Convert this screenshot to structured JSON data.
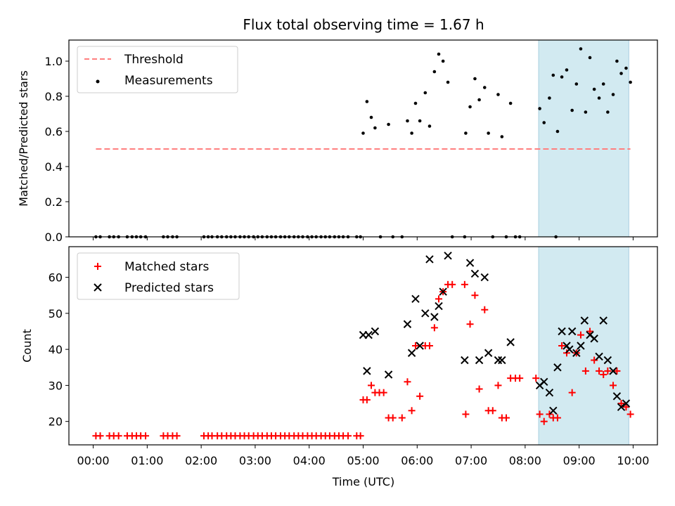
{
  "title": "Flux total observing time = 1.67 h",
  "colors": {
    "threshold": "#ff7f7f",
    "measure": "#000000",
    "matched": "#ff0000",
    "predicted": "#000000",
    "shade": "#add8e6"
  },
  "chart_data": [
    {
      "type": "scatter",
      "ylabel": "Matched/Predicted stars",
      "xlim_hours": [
        -0.45,
        10.45
      ],
      "ylim": [
        0,
        1.12
      ],
      "yticks": [
        "0.0",
        "0.2",
        "0.4",
        "0.6",
        "0.8",
        "1.0"
      ],
      "ytick_values": [
        0,
        0.2,
        0.4,
        0.6,
        0.8,
        1.0
      ],
      "shaded_span_hours": [
        8.25,
        9.92
      ],
      "threshold": {
        "value": 0.5,
        "x_range_hours": [
          0.05,
          9.95
        ]
      },
      "legend": {
        "location": "upper left",
        "entries": [
          "Threshold",
          "Measurements"
        ]
      },
      "measurements_nonzero": [
        [
          5.0,
          0.59
        ],
        [
          5.07,
          0.77
        ],
        [
          5.15,
          0.68
        ],
        [
          5.22,
          0.62
        ],
        [
          5.47,
          0.64
        ],
        [
          5.82,
          0.66
        ],
        [
          5.9,
          0.59
        ],
        [
          5.97,
          0.76
        ],
        [
          6.05,
          0.66
        ],
        [
          6.15,
          0.82
        ],
        [
          6.23,
          0.63
        ],
        [
          6.32,
          0.94
        ],
        [
          6.4,
          1.04
        ],
        [
          6.48,
          1.0
        ],
        [
          6.57,
          0.88
        ],
        [
          6.9,
          0.59
        ],
        [
          6.98,
          0.74
        ],
        [
          7.07,
          0.9
        ],
        [
          7.15,
          0.78
        ],
        [
          7.25,
          0.85
        ],
        [
          7.32,
          0.59
        ],
        [
          7.5,
          0.81
        ],
        [
          7.57,
          0.57
        ],
        [
          7.73,
          0.76
        ],
        [
          8.27,
          0.73
        ],
        [
          8.35,
          0.65
        ],
        [
          8.45,
          0.79
        ],
        [
          8.52,
          0.92
        ],
        [
          8.6,
          0.6
        ],
        [
          8.68,
          0.91
        ],
        [
          8.77,
          0.95
        ],
        [
          8.87,
          0.72
        ],
        [
          8.95,
          0.87
        ],
        [
          9.03,
          1.07
        ],
        [
          9.12,
          0.71
        ],
        [
          9.2,
          1.02
        ],
        [
          9.28,
          0.84
        ],
        [
          9.37,
          0.79
        ],
        [
          9.45,
          0.87
        ],
        [
          9.53,
          0.71
        ],
        [
          9.63,
          0.81
        ],
        [
          9.7,
          1.0
        ],
        [
          9.78,
          0.93
        ],
        [
          9.87,
          0.96
        ],
        [
          9.95,
          0.88
        ]
      ],
      "measurements_zero_hours": [
        0.05,
        0.13,
        0.3,
        0.38,
        0.47,
        0.63,
        0.72,
        0.8,
        0.88,
        0.97,
        1.3,
        1.38,
        1.47,
        1.55,
        2.05,
        2.13,
        2.2,
        2.3,
        2.38,
        2.47,
        2.55,
        2.63,
        2.72,
        2.8,
        2.88,
        2.97,
        3.05,
        3.13,
        3.22,
        3.3,
        3.38,
        3.47,
        3.55,
        3.63,
        3.72,
        3.8,
        3.88,
        3.97,
        4.05,
        4.13,
        4.22,
        4.3,
        4.38,
        4.47,
        4.55,
        4.63,
        4.72,
        4.88,
        4.95,
        5.32,
        5.55,
        5.72,
        6.65,
        6.88,
        7.4,
        7.65,
        7.82,
        7.9,
        8.57
      ]
    },
    {
      "type": "scatter",
      "ylabel": "Count",
      "xlabel": "Time (UTC)",
      "xlim_hours": [
        -0.45,
        10.45
      ],
      "ylim": [
        13.5,
        68.5
      ],
      "yticks": [
        "20",
        "30",
        "40",
        "50",
        "60"
      ],
      "ytick_values": [
        20,
        30,
        40,
        50,
        60
      ],
      "xticks": [
        "00:00",
        "01:00",
        "02:00",
        "03:00",
        "04:00",
        "05:00",
        "06:00",
        "07:00",
        "08:00",
        "09:00",
        "10:00"
      ],
      "xtick_values_hours": [
        0,
        1,
        2,
        3,
        4,
        5,
        6,
        7,
        8,
        9,
        10
      ],
      "shaded_span_hours": [
        8.25,
        9.92
      ],
      "legend": {
        "location": "upper left",
        "entries": [
          "Matched stars",
          "Predicted stars"
        ]
      },
      "matched_low_hours": [
        0.05,
        0.13,
        0.3,
        0.38,
        0.47,
        0.63,
        0.72,
        0.8,
        0.88,
        0.97,
        1.3,
        1.38,
        1.47,
        1.55,
        2.05,
        2.13,
        2.2,
        2.3,
        2.38,
        2.47,
        2.55,
        2.63,
        2.72,
        2.8,
        2.88,
        2.97,
        3.05,
        3.13,
        3.22,
        3.3,
        3.38,
        3.47,
        3.55,
        3.63,
        3.72,
        3.8,
        3.88,
        3.97,
        4.05,
        4.13,
        4.22,
        4.3,
        4.38,
        4.47,
        4.55,
        4.63,
        4.72,
        4.88,
        4.95
      ],
      "matched_low_value": 16,
      "matched_stars": [
        [
          5.0,
          26
        ],
        [
          5.07,
          26
        ],
        [
          5.15,
          30
        ],
        [
          5.22,
          28
        ],
        [
          5.3,
          28
        ],
        [
          5.38,
          28
        ],
        [
          5.47,
          21
        ],
        [
          5.55,
          21
        ],
        [
          5.72,
          21
        ],
        [
          5.82,
          31
        ],
        [
          5.9,
          23
        ],
        [
          5.97,
          41
        ],
        [
          6.05,
          27
        ],
        [
          6.15,
          41
        ],
        [
          6.23,
          41
        ],
        [
          6.32,
          46
        ],
        [
          6.4,
          54
        ],
        [
          6.48,
          56
        ],
        [
          6.57,
          58
        ],
        [
          6.65,
          58
        ],
        [
          6.88,
          58
        ],
        [
          6.9,
          22
        ],
        [
          6.98,
          47
        ],
        [
          7.07,
          55
        ],
        [
          7.15,
          29
        ],
        [
          7.25,
          51
        ],
        [
          7.32,
          23
        ],
        [
          7.4,
          23
        ],
        [
          7.5,
          30
        ],
        [
          7.57,
          21
        ],
        [
          7.65,
          21
        ],
        [
          7.73,
          32
        ],
        [
          7.82,
          32
        ],
        [
          7.9,
          32
        ],
        [
          8.2,
          32
        ],
        [
          8.27,
          22
        ],
        [
          8.35,
          20
        ],
        [
          8.45,
          22
        ],
        [
          8.52,
          21
        ],
        [
          8.6,
          21
        ],
        [
          8.68,
          41
        ],
        [
          8.77,
          39
        ],
        [
          8.87,
          28
        ],
        [
          8.95,
          39
        ],
        [
          9.03,
          44
        ],
        [
          9.12,
          34
        ],
        [
          9.2,
          45
        ],
        [
          9.28,
          37
        ],
        [
          9.37,
          34
        ],
        [
          9.45,
          33
        ],
        [
          9.53,
          34
        ],
        [
          9.63,
          30
        ],
        [
          9.7,
          34
        ],
        [
          9.78,
          25
        ],
        [
          9.87,
          24
        ],
        [
          9.95,
          22
        ]
      ],
      "predicted_stars": [
        [
          5.0,
          44
        ],
        [
          5.07,
          34
        ],
        [
          5.1,
          44
        ],
        [
          5.22,
          45
        ],
        [
          5.47,
          33
        ],
        [
          5.82,
          47
        ],
        [
          5.9,
          39
        ],
        [
          5.97,
          54
        ],
        [
          6.05,
          41
        ],
        [
          6.15,
          50
        ],
        [
          6.23,
          65
        ],
        [
          6.32,
          49
        ],
        [
          6.4,
          52
        ],
        [
          6.48,
          56
        ],
        [
          6.57,
          66
        ],
        [
          6.88,
          37
        ],
        [
          6.98,
          64
        ],
        [
          7.07,
          61
        ],
        [
          7.15,
          37
        ],
        [
          7.25,
          60
        ],
        [
          7.32,
          39
        ],
        [
          7.5,
          37
        ],
        [
          7.57,
          37
        ],
        [
          7.73,
          42
        ],
        [
          8.27,
          30
        ],
        [
          8.35,
          31
        ],
        [
          8.45,
          28
        ],
        [
          8.52,
          23
        ],
        [
          8.6,
          35
        ],
        [
          8.68,
          45
        ],
        [
          8.77,
          41
        ],
        [
          8.82,
          40
        ],
        [
          8.87,
          45
        ],
        [
          8.95,
          39
        ],
        [
          9.03,
          41
        ],
        [
          9.1,
          48
        ],
        [
          9.2,
          44
        ],
        [
          9.28,
          43
        ],
        [
          9.37,
          38
        ],
        [
          9.45,
          48
        ],
        [
          9.53,
          37
        ],
        [
          9.63,
          34
        ],
        [
          9.7,
          27
        ],
        [
          9.78,
          24
        ],
        [
          9.87,
          25
        ]
      ]
    }
  ]
}
